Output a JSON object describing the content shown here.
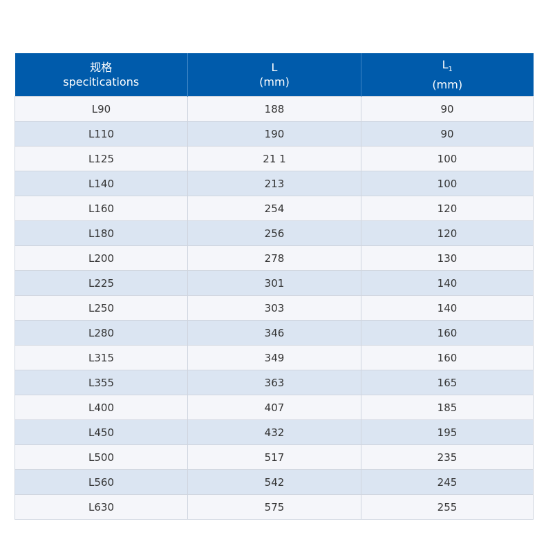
{
  "table": {
    "header": [
      {
        "title": "规格",
        "subtitle": "specitications"
      },
      {
        "title": "L",
        "subtitle": "(mm)"
      },
      {
        "title": "L",
        "sub": "1",
        "subtitle": "(mm)"
      }
    ],
    "rows": [
      [
        "L90",
        "188",
        "90"
      ],
      [
        "L110",
        "190",
        "90"
      ],
      [
        "L125",
        "21 1",
        "100"
      ],
      [
        "L140",
        "213",
        "100"
      ],
      [
        "L160",
        "254",
        "120"
      ],
      [
        "L180",
        "256",
        "120"
      ],
      [
        "L200",
        "278",
        "130"
      ],
      [
        "L225",
        "301",
        "140"
      ],
      [
        "L250",
        "303",
        "140"
      ],
      [
        "L280",
        "346",
        "160"
      ],
      [
        "L315",
        "349",
        "160"
      ],
      [
        "L355",
        "363",
        "165"
      ],
      [
        "L400",
        "407",
        "185"
      ],
      [
        "L450",
        "432",
        "195"
      ],
      [
        "L500",
        "517",
        "235"
      ],
      [
        "L560",
        "542",
        "245"
      ],
      [
        "L630",
        "575",
        "255"
      ]
    ]
  }
}
